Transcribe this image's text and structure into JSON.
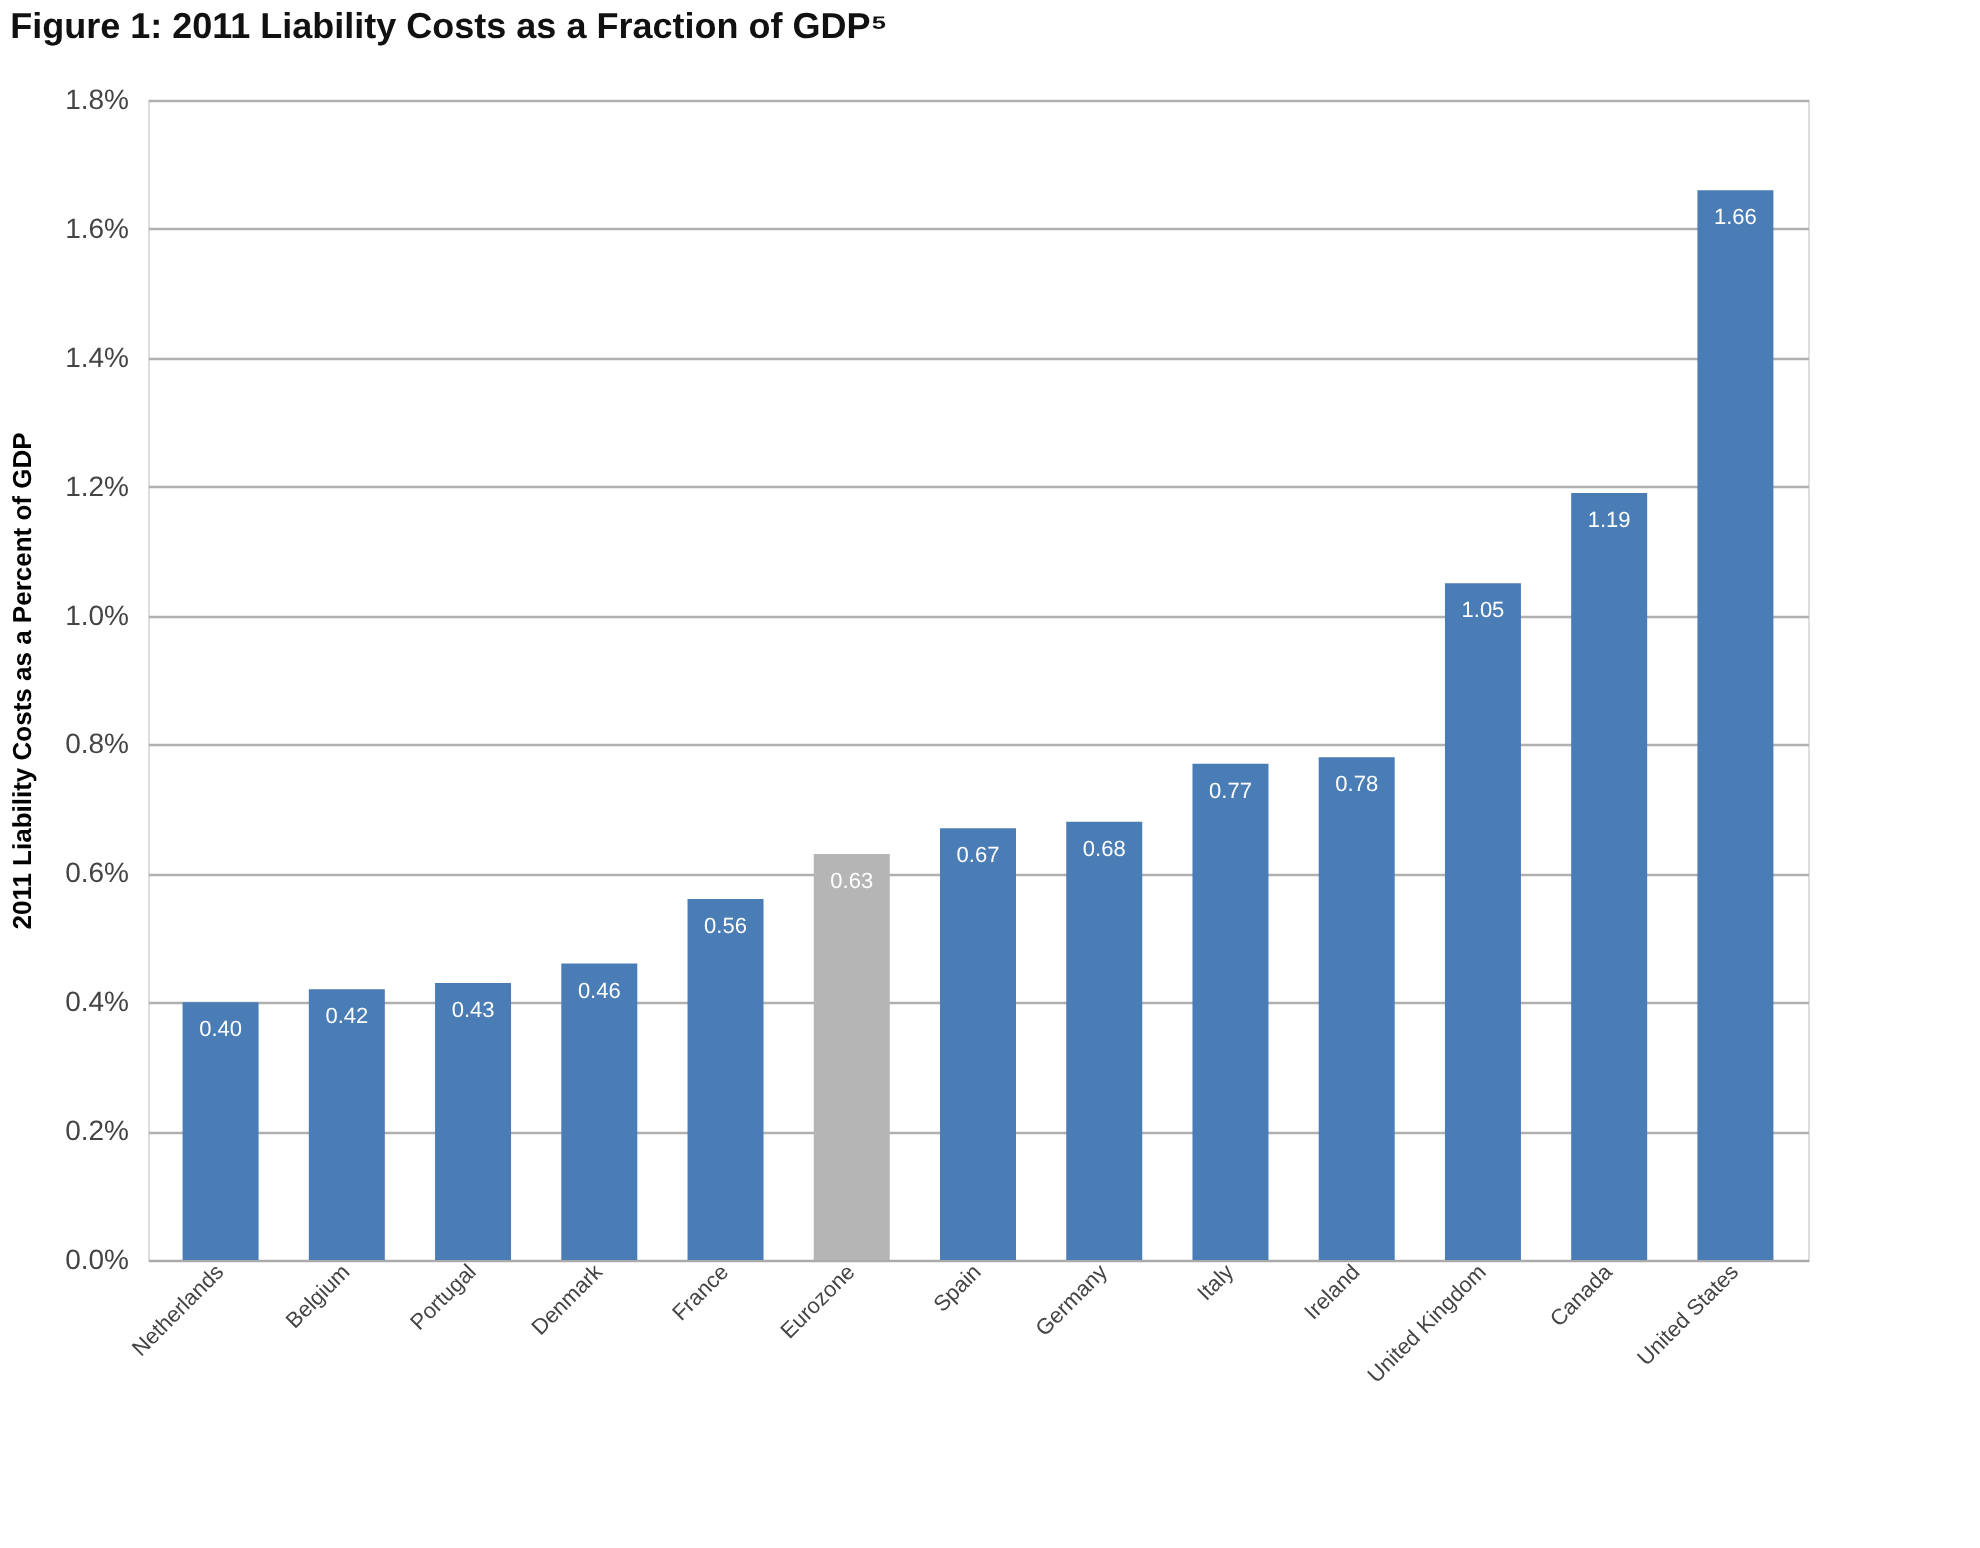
{
  "chart_data": {
    "type": "bar",
    "title": "Figure 1: 2011 Liability Costs as a Fraction of GDP⁵",
    "ylabel": "2011 Liability Costs as a Percent of GDP",
    "categories": [
      "Netherlands",
      "Belgium",
      "Portugal",
      "Denmark",
      "France",
      "Eurozone",
      "Spain",
      "Germany",
      "Italy",
      "Ireland",
      "United Kingdom",
      "Canada",
      "United States"
    ],
    "values": [
      0.4,
      0.42,
      0.43,
      0.46,
      0.56,
      0.63,
      0.67,
      0.68,
      0.77,
      0.78,
      1.05,
      1.19,
      1.66
    ],
    "colors": [
      "#4a7db5",
      "#4a7db5",
      "#4a7db5",
      "#4a7db5",
      "#4a7db5",
      "#b5b5b5",
      "#4a7db5",
      "#4a7db5",
      "#4a7db5",
      "#4a7db5",
      "#4a7db5",
      "#4a7db5",
      "#4a7db5"
    ],
    "ylim": [
      0,
      1.8
    ],
    "yticks": [
      {
        "value": 0,
        "label": "0.0%"
      },
      {
        "value": 0.2,
        "label": "0.2%"
      },
      {
        "value": 0.4,
        "label": "0.4%"
      },
      {
        "value": 0.6,
        "label": "0.6%"
      },
      {
        "value": 0.8,
        "label": "0.8%"
      },
      {
        "value": 1.0,
        "label": "1.0%"
      },
      {
        "value": 1.2,
        "label": "1.2%"
      },
      {
        "value": 1.4,
        "label": "1.4%"
      },
      {
        "value": 1.6,
        "label": "1.6%"
      },
      {
        "value": 1.8,
        "label": "1.8%"
      }
    ],
    "value_labels": [
      "0.40",
      "0.42",
      "0.43",
      "0.46",
      "0.56",
      "0.63",
      "0.67",
      "0.68",
      "0.77",
      "0.78",
      "1.05",
      "1.19",
      "1.66"
    ],
    "grid": "y"
  }
}
